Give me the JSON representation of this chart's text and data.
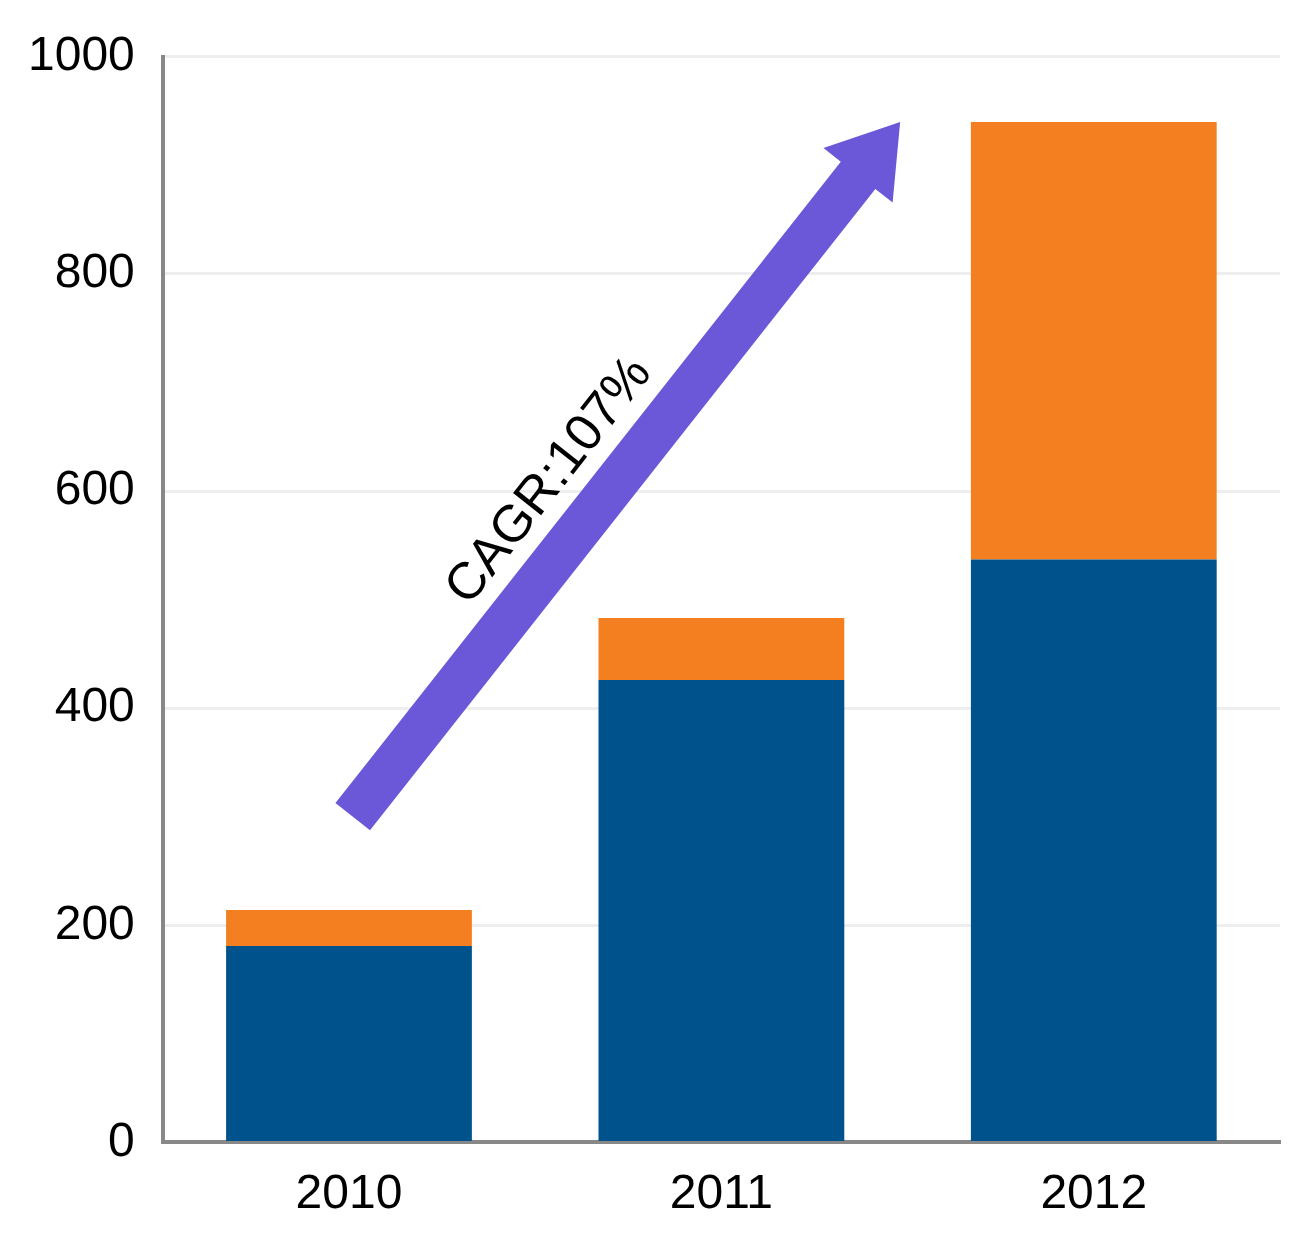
{
  "chart_data": {
    "type": "bar",
    "stacked": true,
    "categories": [
      "2010",
      "2011",
      "2012"
    ],
    "series": [
      {
        "color": "#00528c",
        "values": [
          181,
          426,
          537
        ]
      },
      {
        "color": "#f47f20",
        "values": [
          33,
          57,
          403
        ]
      }
    ],
    "ylim": [
      0,
      1000
    ],
    "yticks": [
      0,
      200,
      400,
      600,
      800,
      1000
    ],
    "grid": "y",
    "legend": false,
    "annotations": [
      "CAGR:107%"
    ]
  }
}
